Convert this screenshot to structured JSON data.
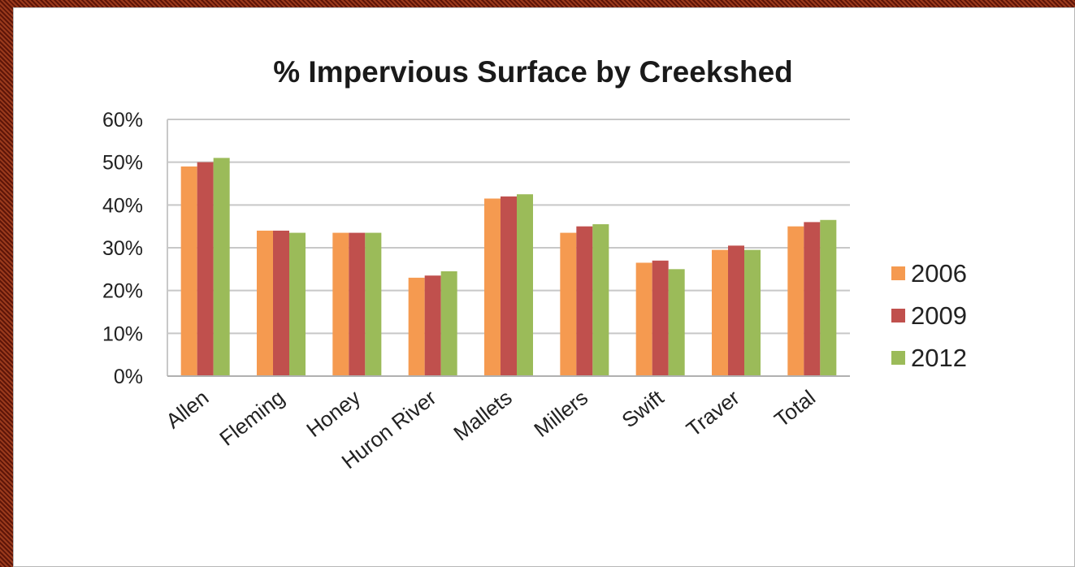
{
  "chart_data": {
    "type": "bar",
    "title": "% Impervious Surface by Creekshed",
    "xlabel": "",
    "ylabel": "",
    "ylim": [
      0,
      60
    ],
    "yticks": [
      "0%",
      "10%",
      "20%",
      "30%",
      "40%",
      "50%",
      "60%"
    ],
    "categories": [
      "Allen",
      "Fleming",
      "Honey",
      "Huron River",
      "Mallets",
      "Millers",
      "Swift",
      "Traver",
      "Total"
    ],
    "series": [
      {
        "name": "2006",
        "color": "#f59a50",
        "values": [
          49,
          34,
          33.5,
          23,
          41.5,
          33.5,
          26.5,
          29.5,
          35
        ]
      },
      {
        "name": "2009",
        "color": "#c0504d",
        "values": [
          50,
          34,
          33.5,
          23.5,
          42,
          35,
          27,
          30.5,
          36
        ]
      },
      {
        "name": "2012",
        "color": "#9bbb59",
        "values": [
          51,
          33.5,
          33.5,
          24.5,
          42.5,
          35.5,
          25,
          29.5,
          36.5
        ]
      }
    ],
    "grid": true,
    "legend": "right"
  }
}
